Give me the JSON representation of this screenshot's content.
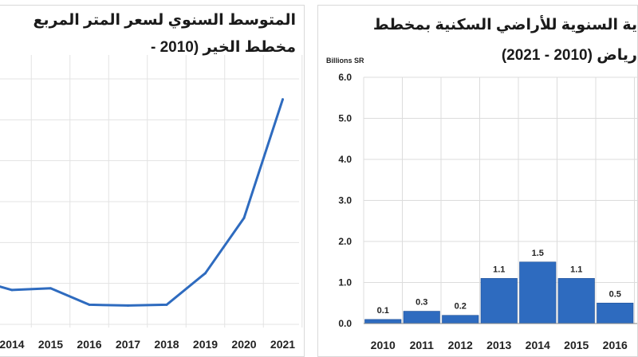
{
  "chart_data": [
    {
      "type": "line",
      "title": "المتوسط السنوي لسعر المتر المربع",
      "subtitle": "مخطط الخير (2010 -",
      "x": [
        "2014",
        "2015",
        "2016",
        "2017",
        "2018",
        "2019",
        "2020",
        "2021"
      ],
      "series": [
        {
          "values": [
            0.84,
            0.88,
            0.48,
            0.46,
            0.48,
            1.25,
            2.6,
            5.5
          ]
        }
      ],
      "ylim": [
        0,
        6
      ],
      "grid": true,
      "color": "#2e6bbf"
    },
    {
      "type": "bar",
      "title": "ية السنوية للأراضي السكنية بمخطط",
      "subtitle": "رياض (2010 - 2021)",
      "ylabel": "Billions SR",
      "categories": [
        "2010",
        "2011",
        "2012",
        "2013",
        "2014",
        "2015",
        "2016"
      ],
      "values": [
        0.1,
        0.3,
        0.2,
        1.1,
        1.5,
        1.1,
        0.5
      ],
      "data_labels": [
        "0.1",
        "0.3",
        "0.2",
        "1.1",
        "1.5",
        "1.1",
        "0.5"
      ],
      "yticks": [
        "0.0",
        "1.0",
        "2.0",
        "3.0",
        "4.0",
        "5.0",
        "6.0"
      ],
      "ylim": [
        0,
        6
      ],
      "grid": true,
      "color": "#2e6bbf"
    }
  ]
}
